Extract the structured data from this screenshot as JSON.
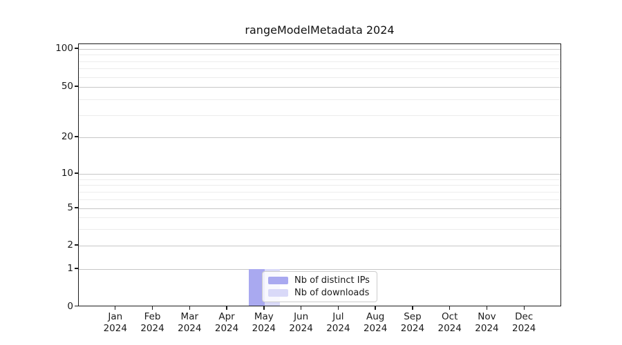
{
  "chart_data": {
    "type": "bar",
    "title": "rangeModelMetadata 2024",
    "categories": [
      "Jan 2024",
      "Feb 2024",
      "Mar 2024",
      "Apr 2024",
      "May 2024",
      "Jun 2024",
      "Jul 2024",
      "Aug 2024",
      "Sep 2024",
      "Oct 2024",
      "Nov 2024",
      "Dec 2024"
    ],
    "series": [
      {
        "name": "Nb of distinct IPs",
        "color": "#a9a9f0",
        "values": [
          0,
          0,
          0,
          0,
          1,
          0,
          0,
          0,
          0,
          0,
          0,
          0
        ]
      },
      {
        "name": "Nb of downloads",
        "color": "#d9d9f8",
        "values": [
          0,
          0,
          0,
          0,
          1,
          0,
          0,
          0,
          0,
          0,
          0,
          0
        ]
      }
    ],
    "yticks": [
      0,
      1,
      2,
      5,
      10,
      20,
      50,
      100
    ],
    "minor_yticks": [
      3,
      4,
      6,
      7,
      8,
      9,
      30,
      40,
      60,
      70,
      80,
      90
    ],
    "ylim": [
      0,
      110
    ],
    "yscale": "log-symlog",
    "xlabel": "",
    "ylabel": "",
    "grid": "on",
    "legend_position": "lower-center-inside"
  },
  "colors": {
    "axis": "#1a1a1a",
    "grid_major": "#c6c6c6",
    "grid_minor": "#ececec",
    "legend_border": "#cccccc",
    "legend_background": "rgba(255,255,255,0.8)",
    "text": "#1a1a1a"
  }
}
